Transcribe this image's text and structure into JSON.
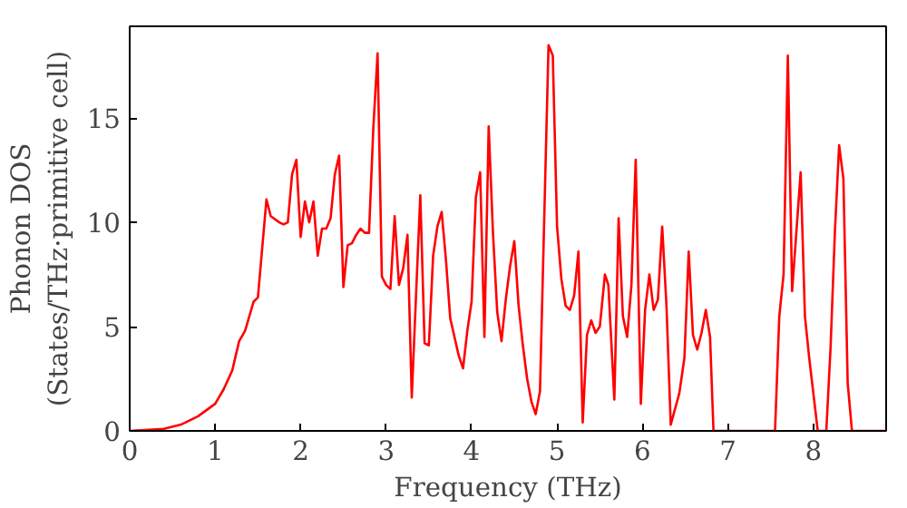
{
  "chart_data": {
    "type": "line",
    "xlabel": "Frequency (THz)",
    "ylabel": "Phonon DOS\n(States/THz·primitive cell)",
    "xlim": [
      0,
      8.85
    ],
    "ylim": [
      0,
      19.4
    ],
    "xticks": [
      0,
      1,
      2,
      3,
      4,
      5,
      6,
      7,
      8
    ],
    "yticks": [
      0,
      5,
      10,
      15
    ],
    "grid": false,
    "series": [
      {
        "color": "#ff0000",
        "x": [
          0,
          0.4,
          0.6,
          0.8,
          1.0,
          1.1,
          1.2,
          1.28,
          1.35,
          1.45,
          1.5,
          1.6,
          1.65,
          1.75,
          1.8,
          1.85,
          1.9,
          1.95,
          2.0,
          2.05,
          2.1,
          2.15,
          2.2,
          2.25,
          2.3,
          2.35,
          2.4,
          2.45,
          2.5,
          2.55,
          2.6,
          2.65,
          2.7,
          2.75,
          2.8,
          2.85,
          2.9,
          2.95,
          3.0,
          3.05,
          3.1,
          3.15,
          3.2,
          3.25,
          3.3,
          3.35,
          3.4,
          3.45,
          3.5,
          3.55,
          3.6,
          3.65,
          3.7,
          3.75,
          3.8,
          3.85,
          3.9,
          3.95,
          4.0,
          4.05,
          4.1,
          4.15,
          4.2,
          4.25,
          4.3,
          4.35,
          4.4,
          4.45,
          4.5,
          4.55,
          4.6,
          4.65,
          4.7,
          4.75,
          4.8,
          4.85,
          4.9,
          4.95,
          5.0,
          5.05,
          5.1,
          5.15,
          5.2,
          5.25,
          5.3,
          5.35,
          5.4,
          5.45,
          5.5,
          5.56,
          5.6,
          5.67,
          5.72,
          5.77,
          5.82,
          5.87,
          5.92,
          5.98,
          6.03,
          6.08,
          6.13,
          6.18,
          6.23,
          6.28,
          6.33,
          6.43,
          6.49,
          6.54,
          6.59,
          6.64,
          6.69,
          6.74,
          6.79,
          6.83,
          7.55,
          7.6,
          7.65,
          7.7,
          7.75,
          7.85,
          7.9,
          7.95,
          8.05,
          8.15,
          8.2,
          8.25,
          8.3,
          8.35,
          8.4,
          8.45,
          8.85
        ],
        "values": [
          0,
          0.1,
          0.3,
          0.7,
          1.3,
          2.0,
          2.9,
          4.3,
          4.8,
          6.2,
          6.4,
          11.1,
          10.3,
          10.0,
          9.9,
          10.0,
          12.3,
          13.0,
          9.3,
          11.0,
          10.0,
          11.0,
          8.4,
          9.7,
          9.7,
          10.2,
          12.3,
          13.2,
          6.9,
          8.9,
          9.0,
          9.4,
          9.7,
          9.5,
          9.5,
          14.5,
          18.1,
          7.4,
          7.0,
          6.8,
          10.3,
          7.0,
          7.8,
          9.4,
          1.6,
          6.5,
          11.3,
          4.2,
          4.1,
          8.4,
          9.8,
          10.5,
          8.2,
          5.4,
          4.5,
          3.6,
          3.0,
          4.8,
          6.2,
          11.2,
          12.4,
          4.5,
          14.6,
          9.5,
          5.7,
          4.3,
          6.3,
          7.9,
          9.1,
          6.0,
          4.1,
          2.5,
          1.4,
          0.8,
          1.9,
          10.2,
          18.5,
          18.0,
          9.8,
          7.3,
          6.0,
          5.8,
          6.5,
          8.6,
          0.4,
          4.6,
          5.3,
          4.7,
          5.0,
          7.5,
          7.0,
          1.5,
          10.2,
          5.5,
          4.5,
          7.0,
          13.0,
          1.3,
          5.8,
          7.5,
          5.8,
          6.3,
          9.8,
          6.0,
          0.3,
          1.8,
          3.5,
          8.6,
          4.6,
          3.9,
          4.7,
          5.8,
          4.5,
          0,
          0,
          5.5,
          7.5,
          18.0,
          6.7,
          12.4,
          5.5,
          3.5,
          0,
          0,
          4.0,
          9.5,
          13.7,
          12.1,
          2.3,
          0,
          0
        ]
      }
    ]
  }
}
